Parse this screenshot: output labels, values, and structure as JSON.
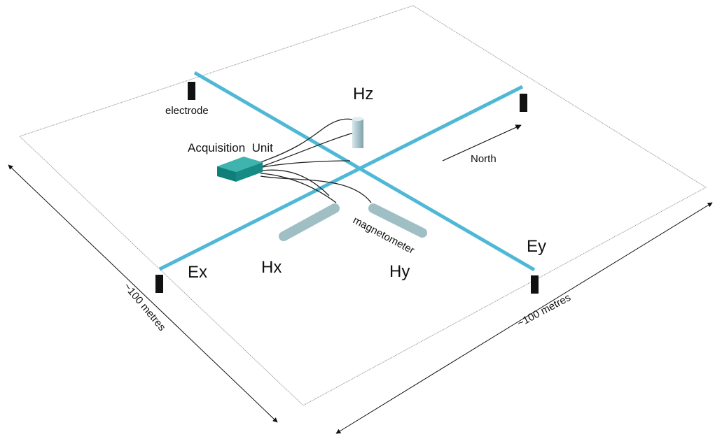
{
  "labels": {
    "hz": "Hz",
    "electrode": "electrode",
    "acquisition_unit": "Acquisition  Unit",
    "north": "North",
    "magnetometer": "magnetometer",
    "ey": "Ey",
    "ex": "Ex",
    "hx": "Hx",
    "hy": "Hy"
  },
  "dimensions": [
    "~100 metres",
    "~100 metres"
  ]
}
